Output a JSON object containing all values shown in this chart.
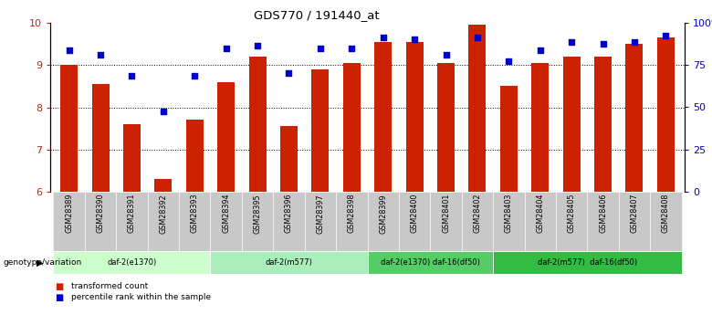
{
  "title": "GDS770 / 191440_at",
  "samples": [
    "GSM28389",
    "GSM28390",
    "GSM28391",
    "GSM28392",
    "GSM28393",
    "GSM28394",
    "GSM28395",
    "GSM28396",
    "GSM28397",
    "GSM28398",
    "GSM28399",
    "GSM28400",
    "GSM28401",
    "GSM28402",
    "GSM28403",
    "GSM28404",
    "GSM28405",
    "GSM28406",
    "GSM28407",
    "GSM28408"
  ],
  "bar_values": [
    9.0,
    8.55,
    7.6,
    6.3,
    7.7,
    8.6,
    9.2,
    7.55,
    8.9,
    9.05,
    9.55,
    9.55,
    9.05,
    9.95,
    8.5,
    9.05,
    9.2,
    9.2,
    9.5,
    9.65
  ],
  "dot_values": [
    9.35,
    9.25,
    8.75,
    7.9,
    8.75,
    9.4,
    9.45,
    8.8,
    9.4,
    9.4,
    9.65,
    9.6,
    9.25,
    9.65,
    9.1,
    9.35,
    9.55,
    9.5,
    9.55,
    9.7
  ],
  "bar_color": "#cc2200",
  "dot_color": "#0000cc",
  "ylim_left": [
    6,
    10
  ],
  "yticks_left": [
    6,
    7,
    8,
    9,
    10
  ],
  "ylim_right": [
    0,
    100
  ],
  "yticks_right": [
    0,
    25,
    50,
    75,
    100
  ],
  "yticklabels_right": [
    "0",
    "25",
    "50",
    "75",
    "100%"
  ],
  "groups": [
    {
      "label": "daf-2(e1370)",
      "start": 0,
      "end": 5,
      "color": "#ccffcc"
    },
    {
      "label": "daf-2(m577)",
      "start": 5,
      "end": 10,
      "color": "#aaeebb"
    },
    {
      "label": "daf-2(e1370) daf-16(df50)",
      "start": 10,
      "end": 14,
      "color": "#55cc66"
    },
    {
      "label": "daf-2(m577)  daf-16(df50)",
      "start": 14,
      "end": 20,
      "color": "#33bb44"
    }
  ],
  "group_row_label": "genotype/variation",
  "legend_bar_label": "transformed count",
  "legend_dot_label": "percentile rank within the sample",
  "tick_color_left": "#cc2200",
  "tick_color_right": "#0000cc"
}
